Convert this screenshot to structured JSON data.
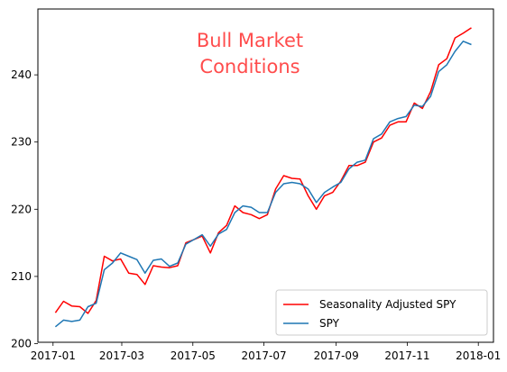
{
  "chart_data": {
    "type": "line",
    "title": "",
    "xlabel": "",
    "ylabel": "",
    "x_ticks": [
      "2017-01",
      "2017-03",
      "2017-05",
      "2017-07",
      "2017-09",
      "2017-11",
      "2018-01"
    ],
    "y_ticks": [
      200,
      210,
      220,
      230,
      240
    ],
    "xlim": [
      "2016-12-19",
      "2018-01-14"
    ],
    "ylim": [
      200.2,
      249.8
    ],
    "grid": false,
    "legend_position": "lower-right",
    "annotation": {
      "lines": [
        "Bull Market",
        "Conditions"
      ],
      "color": "#ff0000"
    },
    "series": [
      {
        "name": "Seasonality Adjusted SPY",
        "color": "#ff0000",
        "points": [
          [
            "2017-01-03",
            204.6
          ],
          [
            "2017-01-10",
            206.3
          ],
          [
            "2017-01-17",
            205.6
          ],
          [
            "2017-01-24",
            205.5
          ],
          [
            "2017-01-31",
            204.5
          ],
          [
            "2017-02-07",
            206.4
          ],
          [
            "2017-02-14",
            213.0
          ],
          [
            "2017-02-21",
            212.3
          ],
          [
            "2017-02-28",
            212.6
          ],
          [
            "2017-03-07",
            210.5
          ],
          [
            "2017-03-14",
            210.3
          ],
          [
            "2017-03-21",
            208.8
          ],
          [
            "2017-03-28",
            211.6
          ],
          [
            "2017-04-04",
            211.4
          ],
          [
            "2017-04-11",
            211.3
          ],
          [
            "2017-04-18",
            211.6
          ],
          [
            "2017-04-25",
            215.0
          ],
          [
            "2017-05-02",
            215.5
          ],
          [
            "2017-05-09",
            216.0
          ],
          [
            "2017-05-16",
            213.5
          ],
          [
            "2017-05-23",
            216.5
          ],
          [
            "2017-05-30",
            217.6
          ],
          [
            "2017-06-06",
            220.5
          ],
          [
            "2017-06-13",
            219.5
          ],
          [
            "2017-06-20",
            219.2
          ],
          [
            "2017-06-27",
            218.6
          ],
          [
            "2017-07-04",
            219.2
          ],
          [
            "2017-07-11",
            223.0
          ],
          [
            "2017-07-18",
            225.0
          ],
          [
            "2017-07-25",
            224.6
          ],
          [
            "2017-08-01",
            224.5
          ],
          [
            "2017-08-08",
            222.0
          ],
          [
            "2017-08-15",
            220.0
          ],
          [
            "2017-08-22",
            222.0
          ],
          [
            "2017-08-29",
            222.5
          ],
          [
            "2017-09-05",
            224.2
          ],
          [
            "2017-09-12",
            226.5
          ],
          [
            "2017-09-19",
            226.5
          ],
          [
            "2017-09-26",
            227.0
          ],
          [
            "2017-10-03",
            230.0
          ],
          [
            "2017-10-10",
            230.6
          ],
          [
            "2017-10-17",
            232.5
          ],
          [
            "2017-10-24",
            233.0
          ],
          [
            "2017-10-31",
            233.0
          ],
          [
            "2017-11-07",
            235.8
          ],
          [
            "2017-11-14",
            235.0
          ],
          [
            "2017-11-21",
            237.5
          ],
          [
            "2017-11-28",
            241.5
          ],
          [
            "2017-12-05",
            242.4
          ],
          [
            "2017-12-12",
            245.5
          ],
          [
            "2017-12-19",
            246.2
          ],
          [
            "2017-12-26",
            247.0
          ]
        ]
      },
      {
        "name": "SPY",
        "color": "#1f77b4",
        "points": [
          [
            "2017-01-03",
            202.5
          ],
          [
            "2017-01-10",
            203.5
          ],
          [
            "2017-01-17",
            203.3
          ],
          [
            "2017-01-24",
            203.5
          ],
          [
            "2017-01-31",
            205.5
          ],
          [
            "2017-02-07",
            206.0
          ],
          [
            "2017-02-14",
            211.0
          ],
          [
            "2017-02-21",
            212.0
          ],
          [
            "2017-02-28",
            213.5
          ],
          [
            "2017-03-07",
            213.0
          ],
          [
            "2017-03-14",
            212.5
          ],
          [
            "2017-03-21",
            210.5
          ],
          [
            "2017-03-28",
            212.4
          ],
          [
            "2017-04-04",
            212.6
          ],
          [
            "2017-04-11",
            211.5
          ],
          [
            "2017-04-18",
            212.0
          ],
          [
            "2017-04-25",
            214.8
          ],
          [
            "2017-05-02",
            215.5
          ],
          [
            "2017-05-09",
            216.2
          ],
          [
            "2017-05-16",
            214.5
          ],
          [
            "2017-05-23",
            216.3
          ],
          [
            "2017-05-30",
            217.0
          ],
          [
            "2017-06-06",
            219.5
          ],
          [
            "2017-06-13",
            220.5
          ],
          [
            "2017-06-20",
            220.3
          ],
          [
            "2017-06-27",
            219.5
          ],
          [
            "2017-07-04",
            219.5
          ],
          [
            "2017-07-11",
            222.5
          ],
          [
            "2017-07-18",
            223.8
          ],
          [
            "2017-07-25",
            224.0
          ],
          [
            "2017-08-01",
            223.8
          ],
          [
            "2017-08-08",
            223.0
          ],
          [
            "2017-08-15",
            221.0
          ],
          [
            "2017-08-22",
            222.5
          ],
          [
            "2017-08-29",
            223.3
          ],
          [
            "2017-09-05",
            224.0
          ],
          [
            "2017-09-12",
            226.0
          ],
          [
            "2017-09-19",
            227.0
          ],
          [
            "2017-09-26",
            227.3
          ],
          [
            "2017-10-03",
            230.5
          ],
          [
            "2017-10-10",
            231.2
          ],
          [
            "2017-10-17",
            233.0
          ],
          [
            "2017-10-24",
            233.5
          ],
          [
            "2017-10-31",
            233.8
          ],
          [
            "2017-11-07",
            235.5
          ],
          [
            "2017-11-14",
            235.3
          ],
          [
            "2017-11-21",
            236.8
          ],
          [
            "2017-11-28",
            240.5
          ],
          [
            "2017-12-05",
            241.5
          ],
          [
            "2017-12-12",
            243.5
          ],
          [
            "2017-12-19",
            245.0
          ],
          [
            "2017-12-26",
            244.5
          ]
        ]
      }
    ]
  }
}
